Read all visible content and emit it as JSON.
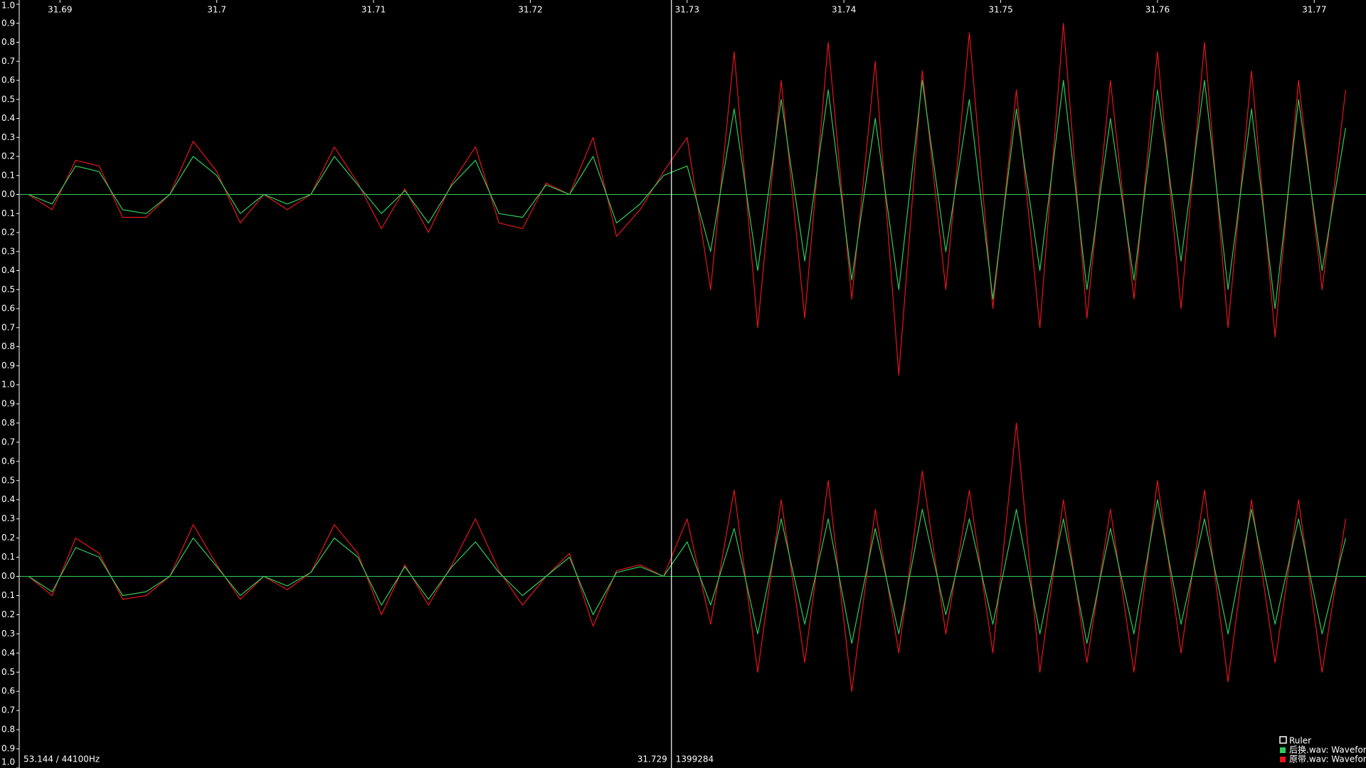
{
  "chart_data": [
    {
      "type": "line",
      "x": [
        31.688,
        31.6895,
        31.691,
        31.6925,
        31.694,
        31.6955,
        31.697,
        31.6985,
        31.7,
        31.7015,
        31.703,
        31.7045,
        31.706,
        31.7075,
        31.709,
        31.7105,
        31.712,
        31.7135,
        31.715,
        31.7165,
        31.718,
        31.7195,
        31.721,
        31.7225,
        31.724,
        31.7255,
        31.727,
        31.7285,
        31.73,
        31.7315,
        31.733,
        31.7345,
        31.736,
        31.7375,
        31.739,
        31.7405,
        31.742,
        31.7435,
        31.745,
        31.7465,
        31.748,
        31.7495,
        31.751,
        31.7525,
        31.754,
        31.7555,
        31.757,
        31.7585,
        31.76,
        31.7615,
        31.763,
        31.7645,
        31.766,
        31.7675,
        31.769,
        31.7705,
        31.772
      ],
      "series": [
        {
          "name": "原带.wav: Waveform",
          "color": "#e8141a",
          "values": [
            0,
            -0.08,
            0.18,
            0.15,
            -0.12,
            -0.12,
            0.0,
            0.28,
            0.12,
            -0.15,
            0.0,
            -0.08,
            0.0,
            0.25,
            0.06,
            -0.18,
            0.03,
            -0.2,
            0.06,
            0.25,
            -0.15,
            -0.18,
            0.06,
            0.0,
            0.3,
            -0.22,
            -0.08,
            0.12,
            0.3,
            -0.5,
            0.75,
            -0.7,
            0.6,
            -0.65,
            0.8,
            -0.55,
            0.7,
            -0.95,
            0.65,
            -0.5,
            0.85,
            -0.6,
            0.55,
            -0.7,
            0.9,
            -0.65,
            0.6,
            -0.55,
            0.75,
            -0.6,
            0.8,
            -0.7,
            0.65,
            -0.75,
            0.6,
            -0.5,
            0.55
          ]
        },
        {
          "name": "后换.wav: Waveform",
          "color": "#2ecc5a",
          "values": [
            0,
            -0.05,
            0.15,
            0.12,
            -0.08,
            -0.1,
            0.0,
            0.2,
            0.1,
            -0.1,
            0.0,
            -0.05,
            0.0,
            0.2,
            0.05,
            -0.1,
            0.02,
            -0.15,
            0.05,
            0.18,
            -0.1,
            -0.12,
            0.05,
            0.0,
            0.2,
            -0.15,
            -0.05,
            0.1,
            0.15,
            -0.3,
            0.45,
            -0.4,
            0.5,
            -0.35,
            0.55,
            -0.45,
            0.4,
            -0.5,
            0.6,
            -0.3,
            0.5,
            -0.55,
            0.45,
            -0.4,
            0.6,
            -0.5,
            0.4,
            -0.45,
            0.55,
            -0.35,
            0.6,
            -0.5,
            0.45,
            -0.6,
            0.5,
            -0.4,
            0.35
          ]
        }
      ],
      "xlim": [
        31.6874,
        31.7733
      ],
      "xticks": [
        31.69,
        31.7,
        31.71,
        31.72,
        31.73,
        31.74,
        31.75,
        31.76,
        31.77
      ],
      "ylim": [
        -1,
        1
      ],
      "yticks": [
        {
          "value": 1,
          "label": "1.0"
        },
        0.9,
        0.8,
        0.7,
        0.6,
        0.5,
        0.4,
        0.3,
        0.2,
        0.1,
        {
          "value": 0,
          "label": "0.0"
        },
        {
          "value": -0.1,
          "label": "0.1"
        },
        {
          "value": -0.2,
          "label": "0.2"
        },
        {
          "value": -0.3,
          "label": "0.3"
        },
        {
          "value": -0.4,
          "label": "0.4"
        },
        {
          "value": -0.5,
          "label": "0.5"
        },
        {
          "value": -0.6,
          "label": "0.6"
        },
        {
          "value": -0.7,
          "label": "0.7"
        },
        {
          "value": -0.8,
          "label": "0.8"
        },
        {
          "value": -0.9,
          "label": "0.9"
        }
      ]
    },
    {
      "type": "line",
      "x": [
        31.688,
        31.6895,
        31.691,
        31.6925,
        31.694,
        31.6955,
        31.697,
        31.6985,
        31.7,
        31.7015,
        31.703,
        31.7045,
        31.706,
        31.7075,
        31.709,
        31.7105,
        31.712,
        31.7135,
        31.715,
        31.7165,
        31.718,
        31.7195,
        31.721,
        31.7225,
        31.724,
        31.7255,
        31.727,
        31.7285,
        31.73,
        31.7315,
        31.733,
        31.7345,
        31.736,
        31.7375,
        31.739,
        31.7405,
        31.742,
        31.7435,
        31.745,
        31.7465,
        31.748,
        31.7495,
        31.751,
        31.7525,
        31.754,
        31.7555,
        31.757,
        31.7585,
        31.76,
        31.7615,
        31.763,
        31.7645,
        31.766,
        31.7675,
        31.769,
        31.7705,
        31.772
      ],
      "series": [
        {
          "name": "原带.wav: Waveform",
          "color": "#e8141a",
          "values": [
            0,
            -0.1,
            0.2,
            0.12,
            -0.12,
            -0.1,
            0.0,
            0.27,
            0.06,
            -0.12,
            0.0,
            -0.07,
            0.02,
            0.27,
            0.12,
            -0.2,
            0.06,
            -0.15,
            0.06,
            0.3,
            0.03,
            -0.15,
            0.0,
            0.12,
            -0.26,
            0.03,
            0.06,
            0.0,
            0.3,
            -0.25,
            0.45,
            -0.5,
            0.4,
            -0.45,
            0.5,
            -0.6,
            0.35,
            -0.4,
            0.55,
            -0.3,
            0.45,
            -0.4,
            0.8,
            -0.5,
            0.4,
            -0.45,
            0.35,
            -0.5,
            0.5,
            -0.4,
            0.45,
            -0.55,
            0.4,
            -0.45,
            0.4,
            -0.5,
            0.3
          ]
        },
        {
          "name": "后换.wav: Waveform",
          "color": "#2ecc5a",
          "values": [
            0,
            -0.08,
            0.15,
            0.1,
            -0.1,
            -0.08,
            0.0,
            0.2,
            0.05,
            -0.1,
            0.0,
            -0.05,
            0.02,
            0.2,
            0.1,
            -0.15,
            0.05,
            -0.12,
            0.05,
            0.18,
            0.02,
            -0.1,
            0.0,
            0.1,
            -0.2,
            0.02,
            0.05,
            0.0,
            0.18,
            -0.15,
            0.25,
            -0.3,
            0.3,
            -0.25,
            0.3,
            -0.35,
            0.25,
            -0.3,
            0.35,
            -0.2,
            0.3,
            -0.25,
            0.35,
            -0.3,
            0.3,
            -0.35,
            0.25,
            -0.3,
            0.4,
            -0.25,
            0.3,
            -0.3,
            0.35,
            -0.25,
            0.3,
            -0.3,
            0.2
          ]
        }
      ],
      "xlim": [
        31.6874,
        31.7733
      ],
      "ylim": [
        -1,
        1
      ],
      "yticks": [
        {
          "value": 1,
          "label": "1.0"
        },
        0.9,
        0.8,
        0.7,
        0.6,
        0.5,
        0.4,
        0.3,
        0.2,
        0.1,
        {
          "value": 0,
          "label": "0.0"
        },
        {
          "value": -0.1,
          "label": "0.1"
        },
        {
          "value": -0.2,
          "label": "0.2"
        },
        {
          "value": -0.3,
          "label": "0.3"
        },
        {
          "value": -0.4,
          "label": "0.4"
        },
        {
          "value": -0.5,
          "label": "0.5"
        },
        {
          "value": -0.6,
          "label": "0.6"
        },
        {
          "value": -0.7,
          "label": "0.7"
        },
        {
          "value": -0.8,
          "label": "0.8"
        },
        {
          "value": -0.9,
          "label": "0.9"
        },
        {
          "value": -1,
          "label": "1.0"
        }
      ]
    }
  ],
  "ruler": {
    "label": "Ruler"
  },
  "status": {
    "position": "53.144 / 44100Hz"
  },
  "cursor": {
    "time": 31.729,
    "sample": 1399284
  }
}
